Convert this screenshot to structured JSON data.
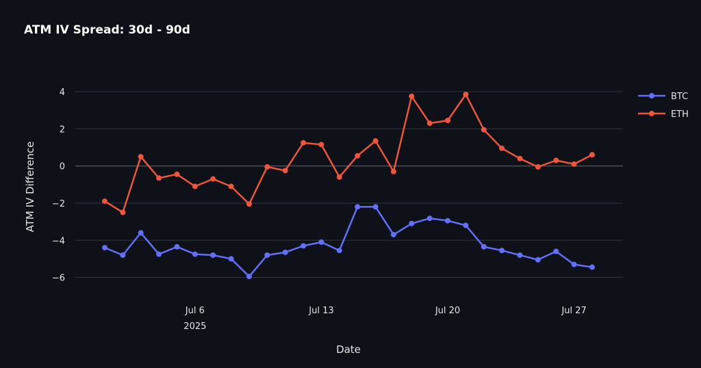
{
  "chart_data": {
    "type": "line",
    "title": "ATM IV Spread: 30d - 90d",
    "xlabel": "Date",
    "ylabel": "ATM IV Difference",
    "ylim": [
      -6.9,
      4.7
    ],
    "y_ticks": [
      -6,
      -4,
      -2,
      0,
      2,
      4
    ],
    "x_ticks": [
      {
        "date": "2025-07-06",
        "label": "Jul 6",
        "sublabel": "2025"
      },
      {
        "date": "2025-07-13",
        "label": "Jul 13"
      },
      {
        "date": "2025-07-20",
        "label": "Jul 20"
      },
      {
        "date": "2025-07-27",
        "label": "Jul 27"
      }
    ],
    "x": [
      "2025-07-01",
      "2025-07-02",
      "2025-07-03",
      "2025-07-04",
      "2025-07-05",
      "2025-07-06",
      "2025-07-07",
      "2025-07-08",
      "2025-07-09",
      "2025-07-10",
      "2025-07-11",
      "2025-07-12",
      "2025-07-13",
      "2025-07-14",
      "2025-07-15",
      "2025-07-16",
      "2025-07-17",
      "2025-07-18",
      "2025-07-19",
      "2025-07-20",
      "2025-07-21",
      "2025-07-22",
      "2025-07-23",
      "2025-07-24",
      "2025-07-25",
      "2025-07-26",
      "2025-07-27",
      "2025-07-28"
    ],
    "series": [
      {
        "name": "BTC",
        "color": "#636efa",
        "values": [
          -4.4,
          -4.8,
          -3.6,
          -4.75,
          -4.35,
          -4.75,
          -4.8,
          -5.0,
          -5.95,
          -4.8,
          -4.65,
          -4.3,
          -4.1,
          -4.55,
          -2.2,
          -2.2,
          -3.7,
          -3.1,
          -2.82,
          -2.95,
          -3.2,
          -4.35,
          -4.55,
          -4.8,
          -5.05,
          -4.6,
          -5.3,
          -5.45
        ]
      },
      {
        "name": "ETH",
        "color": "#ef553b",
        "values": [
          -1.9,
          -2.5,
          0.5,
          -0.65,
          -0.45,
          -1.1,
          -0.7,
          -1.1,
          -2.05,
          -0.05,
          -0.25,
          1.25,
          1.15,
          -0.6,
          0.55,
          1.35,
          -0.3,
          3.75,
          2.3,
          2.45,
          3.85,
          1.95,
          0.95,
          0.4,
          -0.05,
          0.3,
          0.1,
          0.6
        ]
      }
    ],
    "legend_position": "top-right",
    "grid": true
  }
}
